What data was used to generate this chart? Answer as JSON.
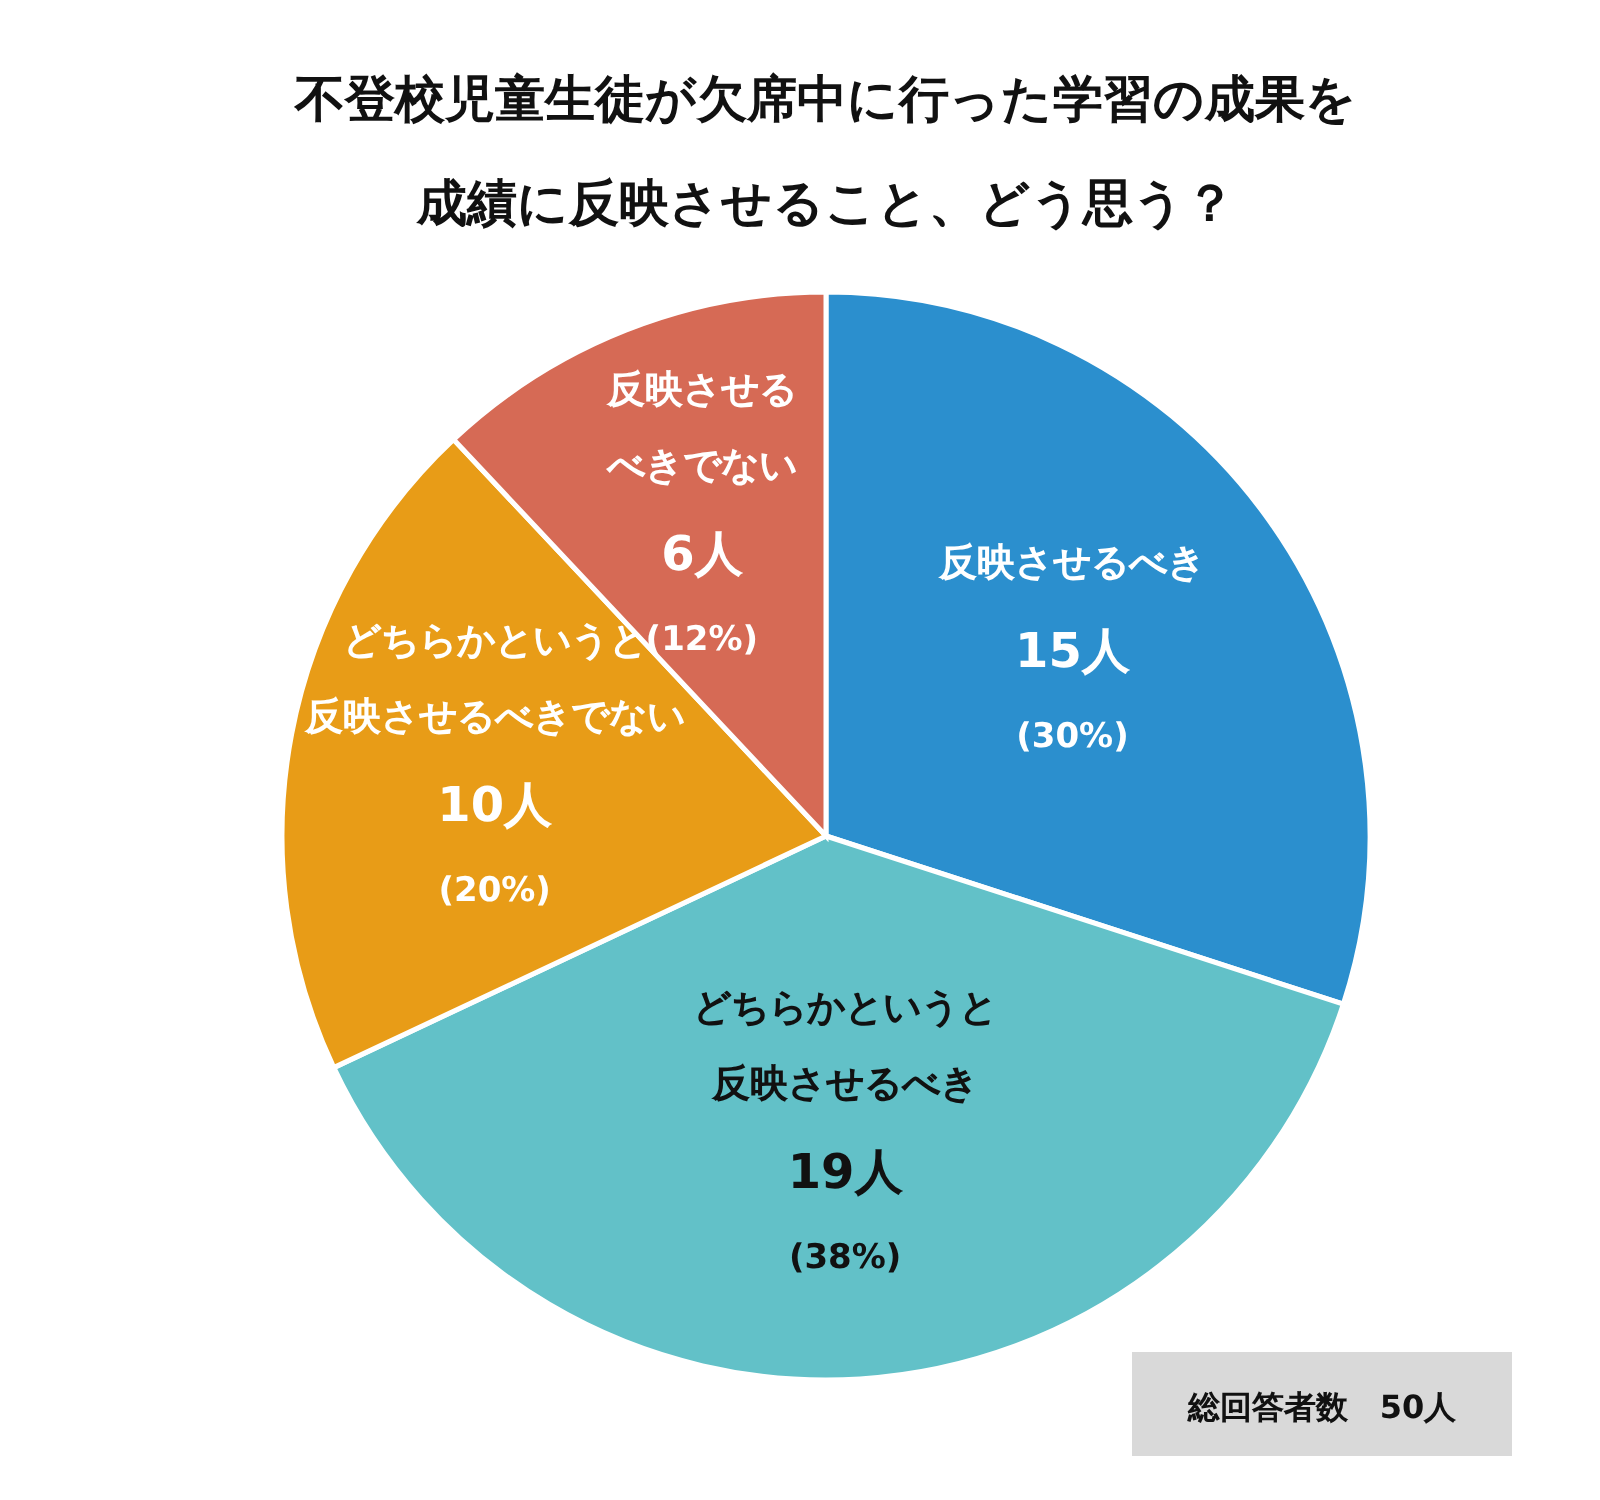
{
  "chart_data": {
    "type": "pie",
    "title": "不登校児童生徒が欠席中に行った学習の成果を成績に反映させること、どう思う？",
    "categories": [
      "反映させるべき",
      "どちらかというと反映させるべき",
      "どちらかというと反映させるべきでない",
      "反映させるべきでない"
    ],
    "values": [
      15,
      19,
      10,
      6
    ],
    "colors": [
      "#2b8fce",
      "#62c1c8",
      "#e89c17",
      "#d66a55"
    ],
    "value_labels": [
      "15人\n(30%)",
      "19人\n(38%)",
      "10人\n(20%)",
      "6人\n(12%)"
    ],
    "annotations": [
      "総回答者数　50人"
    ],
    "legend": false
  }
}
